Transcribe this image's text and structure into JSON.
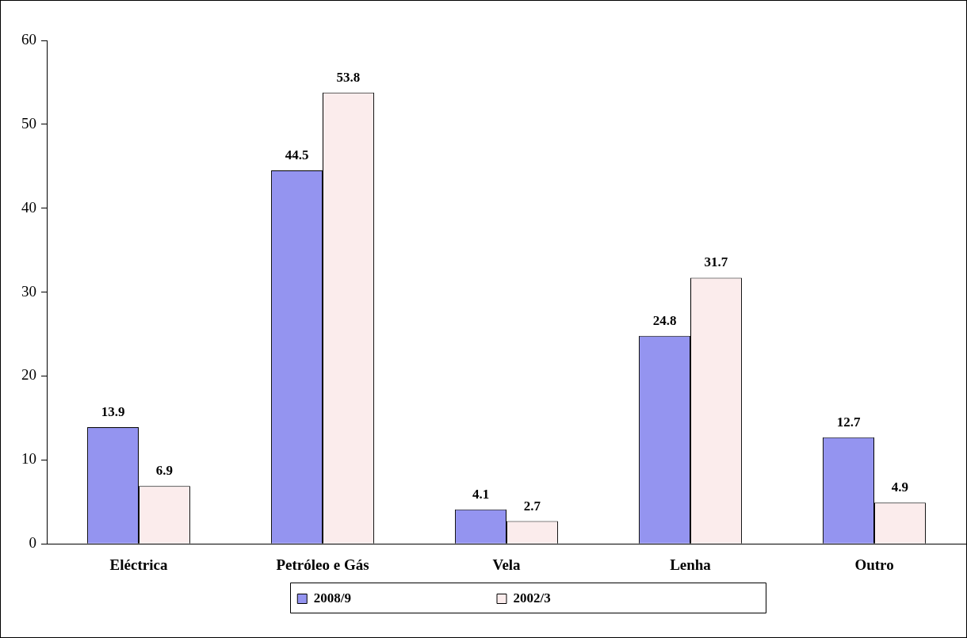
{
  "chart_data": {
    "type": "bar",
    "categories": [
      "Eléctrica",
      "Petróleo e Gás",
      "Vela",
      "Lenha",
      "Outro"
    ],
    "series": [
      {
        "name": "2008/9",
        "color": "#9494f0",
        "values": [
          13.9,
          44.5,
          4.1,
          24.8,
          12.7
        ]
      },
      {
        "name": "2002/3",
        "color": "#fbecec",
        "values": [
          6.9,
          53.8,
          2.7,
          31.7,
          4.9
        ]
      }
    ],
    "ylim": [
      0,
      60
    ],
    "yticks": [
      0,
      10,
      20,
      30,
      40,
      50,
      60
    ],
    "grid": false,
    "legend": "bottom",
    "data_labels": true
  }
}
